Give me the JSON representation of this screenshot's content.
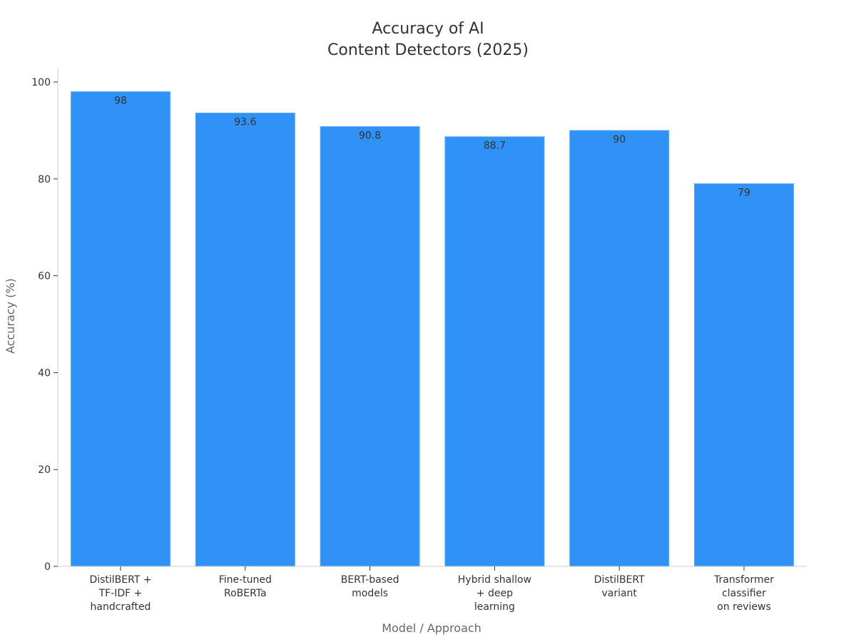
{
  "chart_data": {
    "type": "bar",
    "title": [
      "Accuracy of AI",
      "Content Detectors (2025)"
    ],
    "xlabel": "Model / Approach",
    "ylabel": "Accuracy (%)",
    "ylim": [
      0,
      100
    ],
    "yticks": [
      0,
      20,
      40,
      60,
      80,
      100
    ],
    "categories": [
      [
        "DistilBERT +",
        "TF-IDF +",
        "handcrafted"
      ],
      [
        "Fine-tuned",
        "RoBERTa"
      ],
      [
        "BERT-based",
        "models"
      ],
      [
        "Hybrid shallow",
        "+ deep",
        "learning"
      ],
      [
        "DistilBERT",
        "variant"
      ],
      [
        "Transformer",
        "classifier",
        "on reviews"
      ]
    ],
    "values": [
      98,
      93.6,
      90.8,
      88.7,
      90,
      79
    ],
    "bar_color": "#3091f7",
    "grid": false,
    "legend": "none"
  }
}
